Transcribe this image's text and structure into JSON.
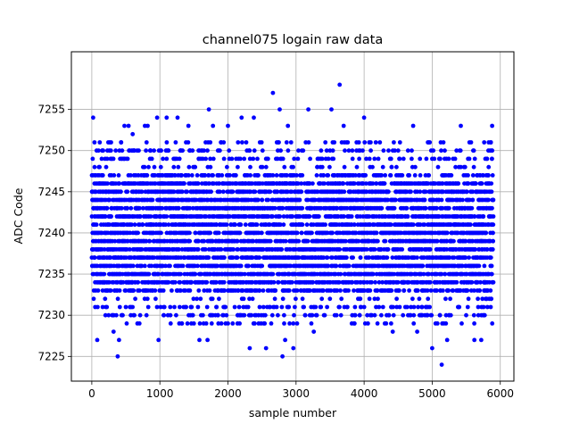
{
  "chart_data": {
    "type": "scatter",
    "title": "channel075 logain raw data",
    "xlabel": "sample number",
    "ylabel": "ADC Code",
    "xlim": [
      -300,
      6200
    ],
    "ylim": [
      7222,
      7262
    ],
    "xticks": [
      0,
      1000,
      2000,
      3000,
      4000,
      5000,
      6000
    ],
    "yticks": [
      7225,
      7230,
      7235,
      7240,
      7245,
      7250,
      7255
    ],
    "xtick_labels": [
      "0",
      "1000",
      "2000",
      "3000",
      "4000",
      "5000",
      "6000"
    ],
    "ytick_labels": [
      "7225",
      "7230",
      "7235",
      "7240",
      "7245",
      "7250",
      "7255"
    ],
    "grid": true,
    "marker_color": "#0000ff",
    "series": [
      {
        "n_samples": 5900,
        "x_range": [
          0,
          5899
        ],
        "dense_range": [
          7233,
          7247
        ],
        "outliers": [
          {
            "x": 20,
            "y": 7254
          },
          {
            "x": 40,
            "y": 7251
          },
          {
            "x": 80,
            "y": 7227
          },
          {
            "x": 160,
            "y": 7231
          },
          {
            "x": 200,
            "y": 7230
          },
          {
            "x": 260,
            "y": 7250
          },
          {
            "x": 320,
            "y": 7228
          },
          {
            "x": 360,
            "y": 7230
          },
          {
            "x": 380,
            "y": 7225
          },
          {
            "x": 400,
            "y": 7227
          },
          {
            "x": 480,
            "y": 7253
          },
          {
            "x": 540,
            "y": 7253
          },
          {
            "x": 600,
            "y": 7252
          },
          {
            "x": 700,
            "y": 7229
          },
          {
            "x": 780,
            "y": 7253
          },
          {
            "x": 820,
            "y": 7253
          },
          {
            "x": 960,
            "y": 7254
          },
          {
            "x": 980,
            "y": 7227
          },
          {
            "x": 1100,
            "y": 7254
          },
          {
            "x": 1260,
            "y": 7254
          },
          {
            "x": 1320,
            "y": 7229
          },
          {
            "x": 1420,
            "y": 7253
          },
          {
            "x": 1580,
            "y": 7227
          },
          {
            "x": 1700,
            "y": 7227
          },
          {
            "x": 1720,
            "y": 7255
          },
          {
            "x": 1780,
            "y": 7253
          },
          {
            "x": 1860,
            "y": 7229
          },
          {
            "x": 2000,
            "y": 7253
          },
          {
            "x": 2140,
            "y": 7229
          },
          {
            "x": 2200,
            "y": 7254
          },
          {
            "x": 2320,
            "y": 7226
          },
          {
            "x": 2380,
            "y": 7254
          },
          {
            "x": 2560,
            "y": 7226
          },
          {
            "x": 2660,
            "y": 7257
          },
          {
            "x": 2760,
            "y": 7255
          },
          {
            "x": 2800,
            "y": 7225
          },
          {
            "x": 2840,
            "y": 7227
          },
          {
            "x": 2880,
            "y": 7253
          },
          {
            "x": 2960,
            "y": 7226
          },
          {
            "x": 3180,
            "y": 7255
          },
          {
            "x": 3260,
            "y": 7228
          },
          {
            "x": 3520,
            "y": 7255
          },
          {
            "x": 3640,
            "y": 7258
          },
          {
            "x": 3700,
            "y": 7253
          },
          {
            "x": 3860,
            "y": 7229
          },
          {
            "x": 4000,
            "y": 7254
          },
          {
            "x": 4420,
            "y": 7228
          },
          {
            "x": 4720,
            "y": 7253
          },
          {
            "x": 4780,
            "y": 7228
          },
          {
            "x": 5000,
            "y": 7226
          },
          {
            "x": 5140,
            "y": 7224
          },
          {
            "x": 5220,
            "y": 7227
          },
          {
            "x": 5420,
            "y": 7253
          },
          {
            "x": 5620,
            "y": 7227
          },
          {
            "x": 5720,
            "y": 7227
          },
          {
            "x": 5880,
            "y": 7253
          }
        ]
      }
    ]
  }
}
